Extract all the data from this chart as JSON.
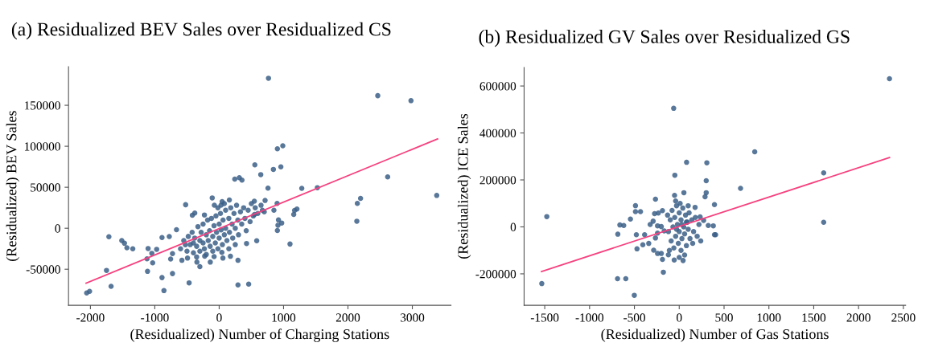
{
  "chart_data": [
    {
      "type": "scatter",
      "title": "(a) Residualized BEV Sales over Residualized CS",
      "xlabel": "(Residualized) Number of Charging Stations",
      "ylabel": "(Residualized) BEV Sales",
      "xlim": [
        -2340,
        3600
      ],
      "ylim": [
        -94000,
        197000
      ],
      "xticks": [
        -2000,
        -1000,
        0,
        1000,
        2000,
        3000
      ],
      "yticks": [
        -50000,
        0,
        50000,
        100000,
        150000
      ],
      "grid": false,
      "series": [
        {
          "type": "scatter",
          "color": "#3b5f87",
          "x": [
            766,
            2463,
            2979,
            988,
            904,
            958,
            842,
            554,
            646,
            2617,
            3379,
            2196,
            2146,
            2138,
            1525,
            1283,
            758,
            313,
            242,
            354,
            -108,
            -521,
            1208,
            1171,
            1158,
            1100,
            900,
            850,
            921,
            971,
            904,
            671,
            713,
            546,
            583,
            425,
            458,
            292,
            292,
            175,
            58,
            -138,
            -300,
            -467,
            -725,
            -858,
            -888,
            -1113,
            -1679,
            -1750,
            -2058,
            -2013,
            -1713,
            -1513,
            -1471,
            -1433,
            -1342,
            -1104,
            -971,
            -1046,
            -1121,
            -1033,
            -888,
            -775,
            -663,
            -417,
            -379,
            -229,
            -75,
            29,
            46,
            158,
            550,
            913,
            -754,
            -725,
            -579,
            -492,
            -346,
            -225,
            -79,
            42,
            -525,
            -400,
            -600,
            -550,
            -500,
            -480,
            -450,
            -420,
            -400,
            -380,
            -350,
            -330,
            -300,
            -300,
            -280,
            -250,
            -250,
            -230,
            -200,
            -200,
            -180,
            -170,
            -150,
            -140,
            -120,
            -100,
            -100,
            -80,
            -60,
            -50,
            -40,
            -20,
            0,
            0,
            20,
            30,
            50,
            60,
            80,
            100,
            100,
            120,
            150,
            160,
            180,
            200,
            210,
            230,
            250,
            270,
            290,
            300,
            330,
            350,
            380,
            400,
            420,
            450,
            480,
            500,
            530,
            560,
            600,
            650,
            700,
            -20,
            80,
            150,
            -350,
            250
          ],
          "values": [
            183000,
            161700,
            155600,
            100600,
            96900,
            74900,
            71800,
            77300,
            65400,
            62600,
            40000,
            36400,
            30300,
            8600,
            49500,
            48600,
            48900,
            61700,
            59900,
            58700,
            37000,
            28700,
            23500,
            21700,
            16800,
            -19300,
            30300,
            22000,
            10100,
            6400,
            -2800,
            22000,
            33900,
            33000,
            -15300,
            -18600,
            -68200,
            -69100,
            -39100,
            -34200,
            -36400,
            -41300,
            -46800,
            -66600,
            -55300,
            -76100,
            -60200,
            -52600,
            -70900,
            -51400,
            -78900,
            -77000,
            -10400,
            -15000,
            -18300,
            -23800,
            -25000,
            -24700,
            -25700,
            -30600,
            -37300,
            -42200,
            -11300,
            -10100,
            -1800,
            15900,
            18600,
            16200,
            28100,
            28100,
            32400,
            34500,
            16800,
            3700,
            -37600,
            -30900,
            -39100,
            -36400,
            -41300,
            -34000,
            -34600,
            -29500,
            -20200,
            -17900,
            -25000,
            -15000,
            -28000,
            -10000,
            -20000,
            -5000,
            -30000,
            -12000,
            -22000,
            2000,
            -15000,
            -28000,
            -5000,
            -18000,
            5000,
            -25000,
            -8000,
            -32000,
            10000,
            -15000,
            -3000,
            -22000,
            12000,
            -10000,
            -28000,
            3000,
            -18000,
            15000,
            -5000,
            -25000,
            5000,
            -12000,
            18000,
            -2000,
            -20000,
            10000,
            -8000,
            22000,
            0,
            -15000,
            12000,
            -5000,
            25000,
            5000,
            -12000,
            18000,
            0,
            28000,
            10000,
            -8000,
            20000,
            5000,
            25000,
            12000,
            -3000,
            22000,
            8000,
            30000,
            15000,
            25000,
            18000,
            28000,
            20000,
            25000,
            30000,
            -25000,
            -35000,
            -20000
          ]
        },
        {
          "type": "line",
          "color": "#f7407f",
          "x": [
            -2067,
            3392
          ],
          "values": [
            -67000,
            109000
          ]
        }
      ]
    },
    {
      "type": "scatter",
      "title": "(b) Residualized GV Sales over Residualized GS",
      "xlabel": "(Residualized) Number of Gas Stations",
      "ylabel": "(Residualized) ICE Sales",
      "xlim": [
        -1730,
        2525
      ],
      "ylim": [
        -334000,
        679000
      ],
      "xticks": [
        -1500,
        -1000,
        -500,
        0,
        500,
        1000,
        1500,
        2000,
        2500
      ],
      "yticks": [
        -200000,
        0,
        200000,
        400000,
        600000
      ],
      "grid": false,
      "series": [
        {
          "type": "scatter",
          "color": "#3b5f87",
          "x": [
            2345,
            -62,
            842,
            82,
            308,
            -49,
            1611,
            301,
            684,
            301,
            288,
            393,
            1611,
            -1477,
            -1533,
            -688,
            -596,
            -501,
            -177,
            -265,
            52,
            -52,
            -488,
            -488,
            -432,
            -544,
            -662,
            -619,
            -685,
            -478,
            -471,
            -406,
            -340,
            -285,
            -242,
            -200,
            -187,
            -121,
            -56,
            43,
            393,
            406,
            380,
            324,
            272,
            233,
            177,
            -386,
            -324,
            -275,
            -233,
            -187,
            -291,
            -242,
            -200,
            -242,
            -265,
            -167,
            -120,
            -100,
            -90,
            -80,
            -70,
            -60,
            -50,
            -40,
            -30,
            -20,
            -10,
            0,
            0,
            10,
            20,
            20,
            30,
            40,
            50,
            60,
            70,
            80,
            90,
            100,
            110,
            120,
            140,
            160,
            180,
            200,
            220,
            -110,
            60,
            -40,
            0,
            100,
            150,
            240,
            -130,
            30,
            -30,
            80
          ],
          "values": [
            631000,
            505000,
            320000,
            275000,
            273000,
            220000,
            230000,
            196500,
            164000,
            145700,
            128300,
            94800,
            19700,
            43900,
            -241600,
            -220800,
            -220800,
            -291300,
            -193000,
            117900,
            145700,
            134100,
            90200,
            64700,
            64700,
            33500,
            8100,
            5800,
            -31200,
            -33500,
            -93600,
            -76300,
            -70500,
            -99400,
            -113300,
            -113300,
            -138700,
            -119100,
            -141000,
            -143300,
            -33500,
            -33500,
            4600,
            5800,
            27700,
            42800,
            83200,
            -33500,
            10400,
            56600,
            59000,
            69400,
            24300,
            4600,
            1200,
            -26600,
            -47400,
            -17300,
            -20000,
            30000,
            -60000,
            70000,
            0,
            -90000,
            40000,
            -40000,
            90000,
            10000,
            -70000,
            60000,
            -20000,
            100000,
            30000,
            -100000,
            -50000,
            80000,
            0,
            -30000,
            50000,
            -80000,
            20000,
            -10000,
            60000,
            -50000,
            30000,
            -20000,
            40000,
            -40000,
            10000,
            -100000,
            -120000,
            110000,
            -130000,
            90000,
            -70000,
            -60000,
            50000,
            10000,
            -10000,
            20000
          ]
        },
        {
          "type": "line",
          "color": "#f7407f",
          "x": [
            -1536,
            2345
          ],
          "values": [
            -190000,
            295000
          ]
        }
      ]
    }
  ]
}
